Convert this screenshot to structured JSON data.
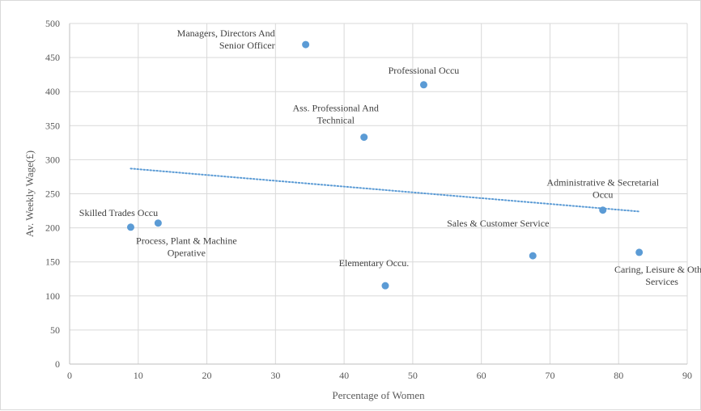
{
  "chart_data": {
    "type": "scatter",
    "title": "",
    "xlabel": "Percentage of Women",
    "ylabel": "Av. Weekly Wage(£)",
    "xlim": [
      0,
      90
    ],
    "ylim": [
      0,
      500
    ],
    "xticks": [
      0,
      10,
      20,
      30,
      40,
      50,
      60,
      70,
      80,
      90
    ],
    "yticks": [
      0,
      50,
      100,
      150,
      200,
      250,
      300,
      350,
      400,
      450,
      500
    ],
    "grid": true,
    "legend": "none",
    "colors": {
      "point": "#5b9bd5",
      "trend": "#5b9bd5",
      "grid": "#d9d9d9",
      "axis": "#bfbfbf"
    },
    "points": [
      {
        "x": 34.4,
        "y": 469,
        "label": [
          "Managers, Directors And",
          "Senior Officer"
        ]
      },
      {
        "x": 51.6,
        "y": 410,
        "label": [
          "Professional Occu"
        ]
      },
      {
        "x": 42.9,
        "y": 333,
        "label": [
          "Ass. Professional And",
          "Technical"
        ]
      },
      {
        "x": 77.7,
        "y": 226,
        "label": [
          "Administrative & Secretarial",
          "Occu"
        ]
      },
      {
        "x": 8.9,
        "y": 201,
        "label": [
          "Skilled  Trades Occu"
        ]
      },
      {
        "x": 12.9,
        "y": 207,
        "label": [
          "Process, Plant & Machine",
          "Operative"
        ]
      },
      {
        "x": 67.5,
        "y": 159,
        "label": [
          "Sales & Customer Service"
        ]
      },
      {
        "x": 83.0,
        "y": 164,
        "label": [
          "Caring, Leisure & Other",
          "Services"
        ]
      },
      {
        "x": 46.0,
        "y": 115,
        "label": [
          "Elementary Occu."
        ]
      }
    ],
    "trendline": {
      "type": "linear",
      "style": "dotted",
      "x_start": 8.9,
      "y_start": 287,
      "x_end": 83.0,
      "y_end": 224
    }
  }
}
